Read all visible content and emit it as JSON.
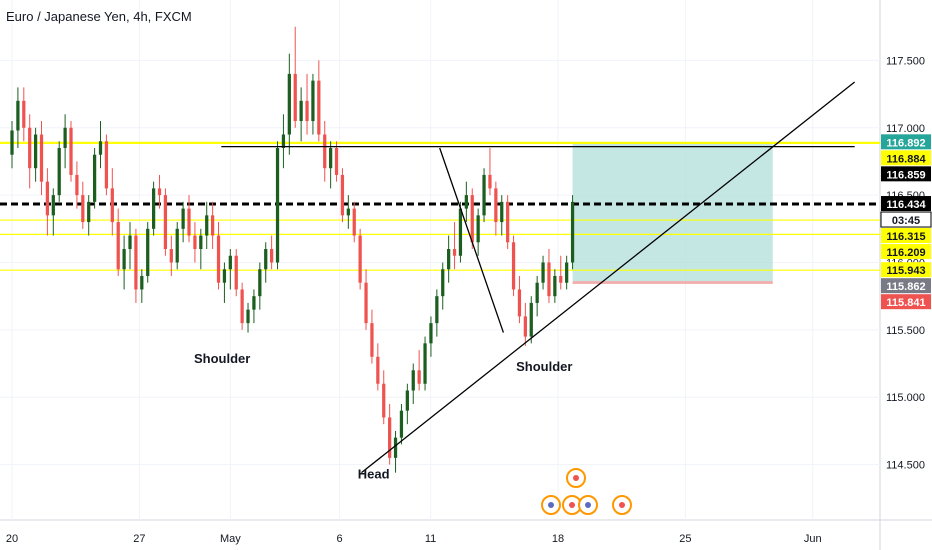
{
  "chart_data": {
    "type": "candlestick",
    "title": "Euro / Japanese Yen, 4h, FXCM",
    "ylim": [
      114.2,
      117.8
    ],
    "y_ticks": [
      {
        "value": 117.5,
        "label": "117.500"
      },
      {
        "value": 117.0,
        "label": "117.000"
      },
      {
        "value": 116.5,
        "label": "116.500"
      },
      {
        "value": 116.0,
        "label": "116.000"
      },
      {
        "value": 115.5,
        "label": "115.500"
      },
      {
        "value": 115.0,
        "label": "115.000"
      },
      {
        "value": 114.5,
        "label": "114.500"
      }
    ],
    "x_ticks": [
      {
        "day": 0,
        "label": "20"
      },
      {
        "day": 7,
        "label": "27"
      },
      {
        "day": 12,
        "label": "May"
      },
      {
        "day": 18,
        "label": "6"
      },
      {
        "day": 23,
        "label": "11"
      },
      {
        "day": 30,
        "label": "18"
      },
      {
        "day": 37,
        "label": "25"
      },
      {
        "day": 44,
        "label": "Jun"
      }
    ],
    "price_labels": [
      {
        "value": 116.892,
        "label": "116.892",
        "bg": "#26a69a",
        "fg": "#ffffff"
      },
      {
        "value": 116.884,
        "label": "116.884",
        "bg": "#ffff00",
        "fg": "#131722"
      },
      {
        "value": 116.859,
        "label": "116.859",
        "bg": "#000000",
        "fg": "#ffffff"
      },
      {
        "value": 116.434,
        "label": "116.434",
        "bg": "#000000",
        "fg": "#ffffff"
      },
      {
        "value": 116.434,
        "label": "03:45",
        "bg": "#ffffff",
        "fg": "#131722",
        "border": "#000000"
      },
      {
        "value": 116.315,
        "label": "116.315",
        "bg": "#ffff00",
        "fg": "#131722"
      },
      {
        "value": 116.209,
        "label": "116.209",
        "bg": "#ffff00",
        "fg": "#131722"
      },
      {
        "value": 115.943,
        "label": "115.943",
        "bg": "#ffff00",
        "fg": "#131722"
      },
      {
        "value": 115.862,
        "label": "115.862",
        "bg": "#787b86",
        "fg": "#ffffff"
      },
      {
        "value": 115.841,
        "label": "115.841",
        "bg": "#ef5350",
        "fg": "#ffffff"
      }
    ],
    "horizontal_lines": [
      {
        "value": 116.892,
        "color": "#ffff00",
        "style": "solid"
      },
      {
        "value": 116.884,
        "color": "#ffff00",
        "style": "solid"
      },
      {
        "value": 116.315,
        "color": "#ffff00",
        "style": "solid"
      },
      {
        "value": 116.209,
        "color": "#ffff00",
        "style": "solid"
      },
      {
        "value": 115.943,
        "color": "#ffff00",
        "style": "solid"
      },
      {
        "value": 116.434,
        "color": "#000000",
        "style": "dashed"
      }
    ],
    "annotations": [
      {
        "text": "Shoulder",
        "day": 10,
        "value": 115.3
      },
      {
        "text": "Head",
        "day": 19,
        "value": 114.44
      },
      {
        "text": "Shoulder",
        "day": 27.7,
        "value": 115.24
      }
    ],
    "trend_lines": [
      {
        "from": [
          19.2,
          114.44
        ],
        "to": [
          46.3,
          117.34
        ]
      },
      {
        "from": [
          11.5,
          116.86
        ],
        "to": [
          46.3,
          116.86
        ]
      },
      {
        "from": [
          23.5,
          116.85
        ],
        "to": [
          27,
          115.48
        ]
      }
    ],
    "position_box": {
      "x_from": 30.8,
      "x_to": 41.8,
      "entry": 115.862,
      "target": 116.892,
      "stop": 115.841
    },
    "colors": {
      "up": "#26a69a",
      "down": "#ef5350",
      "up_wick": "#1b5e20",
      "zone": "#b2dfdb",
      "stop_zone": "#ef9a9a"
    },
    "candles": [
      [
        116.8,
        117.05,
        116.7,
        116.98
      ],
      [
        116.98,
        117.3,
        116.85,
        117.2
      ],
      [
        117.2,
        117.3,
        116.9,
        117.0
      ],
      [
        117.0,
        117.1,
        116.55,
        116.7
      ],
      [
        116.7,
        117.0,
        116.6,
        116.95
      ],
      [
        116.95,
        117.05,
        116.5,
        116.6
      ],
      [
        116.6,
        116.7,
        116.2,
        116.35
      ],
      [
        116.35,
        116.55,
        116.2,
        116.5
      ],
      [
        116.5,
        116.9,
        116.45,
        116.85
      ],
      [
        116.85,
        117.1,
        116.7,
        117.0
      ],
      [
        117.0,
        117.05,
        116.6,
        116.65
      ],
      [
        116.65,
        116.75,
        116.4,
        116.5
      ],
      [
        116.5,
        116.6,
        116.25,
        116.3
      ],
      [
        116.3,
        116.5,
        116.2,
        116.45
      ],
      [
        116.45,
        116.85,
        116.4,
        116.8
      ],
      [
        116.8,
        117.05,
        116.7,
        116.9
      ],
      [
        116.9,
        116.95,
        116.5,
        116.55
      ],
      [
        116.55,
        116.7,
        116.2,
        116.3
      ],
      [
        116.3,
        116.4,
        115.9,
        115.95
      ],
      [
        115.95,
        116.2,
        115.8,
        116.1
      ],
      [
        116.1,
        116.3,
        115.95,
        116.2
      ],
      [
        116.2,
        116.25,
        115.7,
        115.8
      ],
      [
        115.8,
        115.95,
        115.7,
        115.9
      ],
      [
        115.9,
        116.3,
        115.85,
        116.25
      ],
      [
        116.25,
        116.6,
        116.2,
        116.55
      ],
      [
        116.55,
        116.65,
        116.4,
        116.5
      ],
      [
        116.5,
        116.55,
        116.05,
        116.1
      ],
      [
        116.1,
        116.2,
        115.9,
        116.0
      ],
      [
        116.0,
        116.3,
        115.95,
        116.25
      ],
      [
        116.25,
        116.45,
        116.15,
        116.4
      ],
      [
        116.4,
        116.5,
        116.15,
        116.2
      ],
      [
        116.2,
        116.3,
        116.0,
        116.1
      ],
      [
        116.1,
        116.25,
        115.95,
        116.2
      ],
      [
        116.2,
        116.45,
        116.1,
        116.35
      ],
      [
        116.35,
        116.45,
        116.1,
        116.2
      ],
      [
        116.2,
        116.3,
        115.8,
        115.85
      ],
      [
        115.85,
        116.0,
        115.7,
        115.95
      ],
      [
        115.95,
        116.1,
        115.8,
        116.05
      ],
      [
        116.05,
        116.1,
        115.75,
        115.8
      ],
      [
        115.8,
        115.85,
        115.5,
        115.55
      ],
      [
        115.55,
        115.7,
        115.48,
        115.65
      ],
      [
        115.65,
        115.8,
        115.55,
        115.75
      ],
      [
        115.75,
        116.0,
        115.65,
        115.95
      ],
      [
        115.95,
        116.15,
        115.85,
        116.1
      ],
      [
        116.1,
        116.2,
        115.95,
        116.0
      ],
      [
        116.0,
        116.9,
        115.95,
        116.85
      ],
      [
        116.85,
        117.1,
        116.7,
        116.95
      ],
      [
        116.95,
        117.55,
        116.8,
        117.4
      ],
      [
        117.4,
        117.75,
        117.0,
        117.05
      ],
      [
        117.05,
        117.3,
        116.9,
        117.2
      ],
      [
        117.2,
        117.4,
        116.95,
        117.05
      ],
      [
        117.05,
        117.4,
        116.95,
        117.35
      ],
      [
        117.35,
        117.5,
        116.9,
        116.95
      ],
      [
        116.95,
        117.05,
        116.6,
        116.7
      ],
      [
        116.7,
        116.9,
        116.55,
        116.85
      ],
      [
        116.85,
        116.9,
        116.6,
        116.65
      ],
      [
        116.65,
        116.7,
        116.3,
        116.35
      ],
      [
        116.35,
        116.5,
        116.25,
        116.4
      ],
      [
        116.4,
        116.45,
        116.15,
        116.2
      ],
      [
        116.2,
        116.25,
        115.8,
        115.85
      ],
      [
        115.85,
        115.95,
        115.5,
        115.55
      ],
      [
        115.55,
        115.65,
        115.25,
        115.3
      ],
      [
        115.3,
        115.4,
        115.05,
        115.1
      ],
      [
        115.1,
        115.2,
        114.8,
        114.85
      ],
      [
        114.85,
        114.95,
        114.5,
        114.55
      ],
      [
        114.55,
        114.75,
        114.44,
        114.7
      ],
      [
        114.7,
        114.95,
        114.65,
        114.9
      ],
      [
        114.9,
        115.1,
        114.8,
        115.05
      ],
      [
        115.05,
        115.25,
        114.95,
        115.2
      ],
      [
        115.2,
        115.35,
        115.05,
        115.1
      ],
      [
        115.1,
        115.45,
        115.05,
        115.4
      ],
      [
        115.4,
        115.6,
        115.3,
        115.55
      ],
      [
        115.55,
        115.8,
        115.45,
        115.75
      ],
      [
        115.75,
        116.0,
        115.65,
        115.95
      ],
      [
        115.95,
        116.2,
        115.85,
        116.1
      ],
      [
        116.1,
        116.3,
        115.95,
        116.05
      ],
      [
        116.05,
        116.45,
        116.0,
        116.4
      ],
      [
        116.4,
        116.6,
        116.3,
        116.5
      ],
      [
        116.5,
        116.55,
        116.1,
        116.15
      ],
      [
        116.15,
        116.4,
        116.05,
        116.35
      ],
      [
        116.35,
        116.7,
        116.3,
        116.65
      ],
      [
        116.65,
        116.85,
        116.5,
        116.55
      ],
      [
        116.55,
        116.6,
        116.2,
        116.3
      ],
      [
        116.3,
        116.5,
        116.2,
        116.45
      ],
      [
        116.45,
        116.5,
        116.1,
        116.15
      ],
      [
        116.15,
        116.2,
        115.75,
        115.8
      ],
      [
        115.8,
        115.9,
        115.55,
        115.6
      ],
      [
        115.6,
        115.7,
        115.38,
        115.45
      ],
      [
        115.45,
        115.75,
        115.4,
        115.7
      ],
      [
        115.7,
        115.9,
        115.6,
        115.85
      ],
      [
        115.85,
        116.05,
        115.8,
        116.0
      ],
      [
        116.0,
        116.1,
        115.7,
        115.75
      ],
      [
        115.75,
        115.95,
        115.7,
        115.9
      ],
      [
        115.9,
        116.05,
        115.8,
        115.85
      ],
      [
        115.85,
        116.05,
        115.8,
        116.0
      ],
      [
        116.0,
        116.5,
        115.95,
        116.45
      ]
    ]
  }
}
